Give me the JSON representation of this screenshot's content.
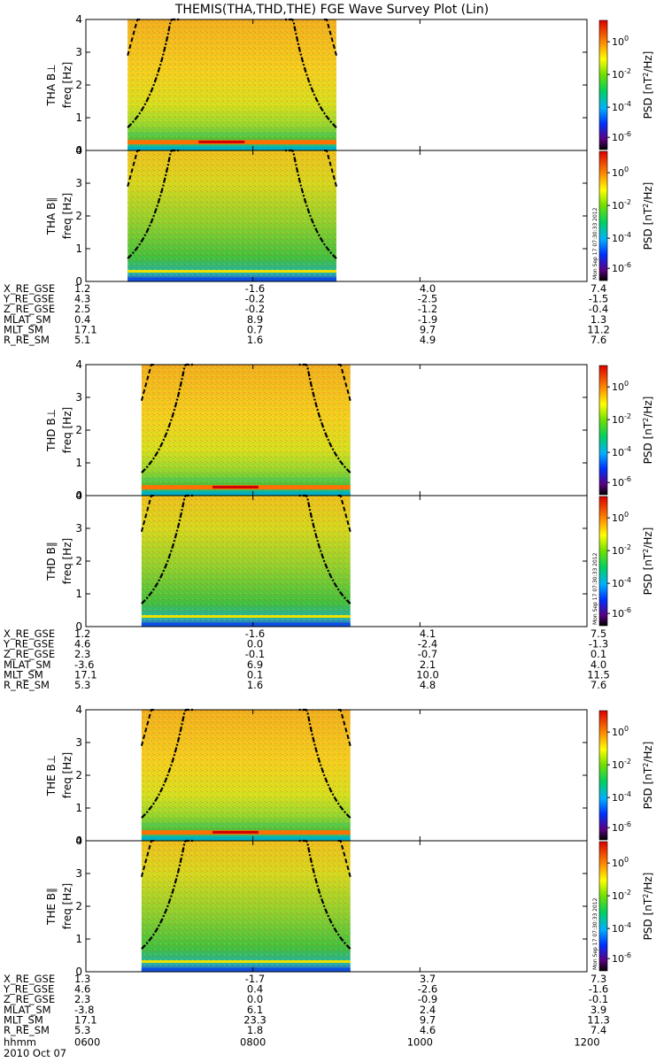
{
  "title": "THEMIS(THA,THD,THE) FGE Wave Survey Plot (Lin)",
  "chart_data": [
    {
      "type": "heatmap",
      "panel_label": "THA B⊥",
      "ylabel": "freq [Hz]",
      "ylim": [
        0,
        4
      ],
      "yticks": [
        "0",
        "1",
        "2",
        "3",
        "4"
      ],
      "data_time_range": [
        "0630",
        "0900"
      ],
      "colorbar_label": "PSD [nT^2/Hz]",
      "colorbar_ticks": [
        "10^0",
        "10^-2",
        "10^-4",
        "10^-6"
      ]
    },
    {
      "type": "heatmap",
      "panel_label": "THA B∥",
      "ylabel": "freq [Hz]",
      "ylim": [
        0,
        4
      ],
      "yticks": [
        "0",
        "1",
        "2",
        "3",
        "4"
      ],
      "data_time_range": [
        "0630",
        "0900"
      ],
      "colorbar_label": "PSD [nT^2/Hz]",
      "colorbar_ticks": [
        "10^0",
        "10^-2",
        "10^-4",
        "10^-6"
      ]
    },
    {
      "type": "heatmap",
      "panel_label": "THD B⊥",
      "ylabel": "freq [Hz]",
      "ylim": [
        0,
        4
      ],
      "yticks": [
        "0",
        "1",
        "2",
        "3",
        "4"
      ],
      "data_time_range": [
        "0640",
        "0910"
      ],
      "colorbar_label": "PSD [nT^2/Hz]",
      "colorbar_ticks": [
        "10^0",
        "10^-2",
        "10^-4",
        "10^-6"
      ]
    },
    {
      "type": "heatmap",
      "panel_label": "THD B∥",
      "ylabel": "freq [Hz]",
      "ylim": [
        0,
        4
      ],
      "yticks": [
        "0",
        "1",
        "2",
        "3",
        "4"
      ],
      "data_time_range": [
        "0640",
        "0910"
      ],
      "colorbar_label": "PSD [nT^2/Hz]",
      "colorbar_ticks": [
        "10^0",
        "10^-2",
        "10^-4",
        "10^-6"
      ]
    },
    {
      "type": "heatmap",
      "panel_label": "THE B⊥",
      "ylabel": "freq [Hz]",
      "ylim": [
        0,
        4
      ],
      "yticks": [
        "0",
        "1",
        "2",
        "3",
        "4"
      ],
      "data_time_range": [
        "0640",
        "0910"
      ],
      "colorbar_label": "PSD [nT^2/Hz]",
      "colorbar_ticks": [
        "10^0",
        "10^-2",
        "10^-4",
        "10^-6"
      ]
    },
    {
      "type": "heatmap",
      "panel_label": "THE B∥",
      "ylabel": "freq [Hz]",
      "ylim": [
        0,
        4
      ],
      "yticks": [
        "0",
        "1",
        "2",
        "3",
        "4"
      ],
      "data_time_range": [
        "0640",
        "0910"
      ],
      "colorbar_label": "PSD [nT^2/Hz]",
      "colorbar_ticks": [
        "10^0",
        "10^-2",
        "10^-4",
        "10^-6"
      ]
    }
  ],
  "stamp_text": "Mon Sep 17 07:30:33 2012",
  "ephemeris": [
    {
      "rows": [
        {
          "label": "X_RE_GSE",
          "values": [
            "1.2",
            "-1.6",
            "4.0",
            "7.4"
          ]
        },
        {
          "label": "Y_RE_GSE",
          "values": [
            "4.3",
            "-0.2",
            "-2.5",
            "-1.5"
          ]
        },
        {
          "label": "Z_RE_GSE",
          "values": [
            "2.5",
            "-0.2",
            "-1.2",
            "-0.4"
          ]
        },
        {
          "label": "MLAT_SM",
          "values": [
            "0.4",
            "8.9",
            "-1.9",
            "1.3"
          ]
        },
        {
          "label": "MLT_SM",
          "values": [
            "17.1",
            "0.7",
            "9.7",
            "11.2"
          ]
        },
        {
          "label": "R_RE_SM",
          "values": [
            "5.1",
            "1.6",
            "4.9",
            "7.6"
          ]
        }
      ]
    },
    {
      "rows": [
        {
          "label": "X_RE_GSE",
          "values": [
            "1.2",
            "-1.6",
            "4.1",
            "7.5"
          ]
        },
        {
          "label": "Y_RE_GSE",
          "values": [
            "4.6",
            "0.0",
            "-2.4",
            "-1.3"
          ]
        },
        {
          "label": "Z_RE_GSE",
          "values": [
            "2.3",
            "-0.1",
            "-0.7",
            "0.1"
          ]
        },
        {
          "label": "MLAT_SM",
          "values": [
            "-3.6",
            "6.9",
            "2.1",
            "4.0"
          ]
        },
        {
          "label": "MLT_SM",
          "values": [
            "17.1",
            "0.1",
            "10.0",
            "11.5"
          ]
        },
        {
          "label": "R_RE_SM",
          "values": [
            "5.3",
            "1.6",
            "4.8",
            "7.6"
          ]
        }
      ]
    },
    {
      "rows": [
        {
          "label": "X_RE_GSE",
          "values": [
            "1.3",
            "-1.7",
            "3.7",
            "7.3"
          ]
        },
        {
          "label": "Y_RE_GSE",
          "values": [
            "4.6",
            "0.4",
            "-2.6",
            "-1.6"
          ]
        },
        {
          "label": "Z_RE_GSE",
          "values": [
            "2.3",
            "0.0",
            "-0.9",
            "-0.1"
          ]
        },
        {
          "label": "MLAT_SM",
          "values": [
            "-3.8",
            "6.1",
            "2.4",
            "3.9"
          ]
        },
        {
          "label": "MLT_SM",
          "values": [
            "17.1",
            "23.3",
            "9.7",
            "11.3"
          ]
        },
        {
          "label": "R_RE_SM",
          "values": [
            "5.3",
            "1.8",
            "4.6",
            "7.4"
          ]
        }
      ]
    }
  ],
  "time_axis": {
    "label": "hhmm",
    "ticks": [
      "0600",
      "0800",
      "1000",
      "1200"
    ],
    "xlim": [
      "0600",
      "1200"
    ],
    "date": "2010 Oct 07"
  },
  "colors": {
    "psd_high": "#cc0000",
    "psd_mid": "#ffd000",
    "psd_low": "#00c000",
    "psd_min": "#000000"
  }
}
